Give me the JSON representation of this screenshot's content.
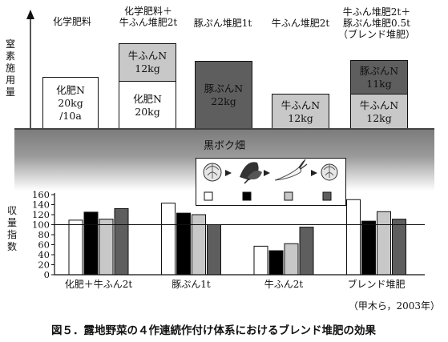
{
  "top": {
    "y_axis_label": "窒素施用量",
    "treatments": [
      {
        "header": [
          "化学肥料"
        ],
        "boxes": [
          {
            "lines": [
              "化肥N",
              "20kg",
              "/10a"
            ],
            "fill": "#ffffff"
          }
        ]
      },
      {
        "header": [
          "化学肥料＋",
          "牛ふん堆肥2t"
        ],
        "boxes": [
          {
            "lines": [
              "牛ふんN",
              "12kg"
            ],
            "fill": "#c8c8c8"
          },
          {
            "lines": [
              "化肥N",
              "20kg"
            ],
            "fill": "#ffffff"
          }
        ]
      },
      {
        "header": [
          "豚ぷん堆肥1t"
        ],
        "boxes": [
          {
            "lines": [
              "豚ぷんN",
              "22kg"
            ],
            "fill": "#5e5e5e"
          }
        ]
      },
      {
        "header": [
          "牛ふん堆肥2t"
        ],
        "boxes": [
          {
            "lines": [
              "牛ふんN",
              "12kg"
            ],
            "fill": "#c8c8c8"
          }
        ]
      },
      {
        "header": [
          "牛ふん堆肥2t＋",
          "豚ぷん堆肥0.5t",
          "（ブレンド堆肥）"
        ],
        "boxes": [
          {
            "lines": [
              "豚ぷんN",
              "11kg"
            ],
            "fill": "#5e5e5e"
          },
          {
            "lines": [
              "牛ふんN",
              "12kg"
            ],
            "fill": "#c8c8c8"
          }
        ]
      }
    ],
    "field_label": "黒ボク畑"
  },
  "crop_sequence": {
    "crop_icons": [
      "cabbage-icon",
      "spinach-icon",
      "daikon-icon",
      "cabbage-icon"
    ],
    "legend_swatches": [
      "#ffffff",
      "#000000",
      "#c8c8c8",
      "#5e5e5e"
    ]
  },
  "chart_data": {
    "type": "bar",
    "ylabel": "収量指数",
    "ylim": [
      0,
      160
    ],
    "yticks": [
      0,
      20,
      40,
      60,
      80,
      100,
      120,
      140,
      160
    ],
    "reference_line": 100,
    "categories": [
      "化肥＋牛ふん2t",
      "豚ぷん1t",
      "牛ふん2t",
      "ブレンド堆肥"
    ],
    "series_colors": [
      "#ffffff",
      "#000000",
      "#c8c8c8",
      "#5e5e5e"
    ],
    "values": [
      [
        109,
        125,
        111,
        132
      ],
      [
        143,
        123,
        120,
        100
      ],
      [
        57,
        48,
        62,
        95
      ],
      [
        150,
        107,
        126,
        111
      ]
    ]
  },
  "credit": "（甲木ら，2003年）",
  "caption": "図５．露地野菜の４作連続作付け体系におけるブレンド堆肥の効果"
}
